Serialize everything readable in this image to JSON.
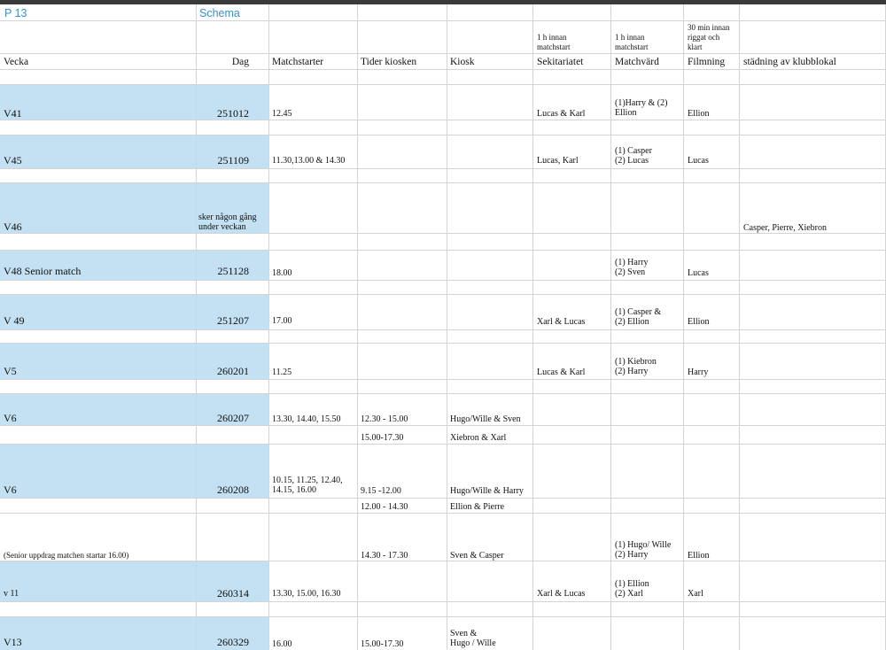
{
  "sheet": {
    "title_cells": {
      "a": "P 13",
      "b": "Schema"
    },
    "sub_headers": {
      "sekretariatet": [
        "1 h innan",
        "matchstart"
      ],
      "matchvard": [
        "1 h innan",
        "matchstart"
      ],
      "filmning": [
        "30 min innan",
        "riggat och",
        "klart"
      ]
    },
    "headers": {
      "vecka": "Vecka",
      "dag": "Dag",
      "matchstarter": "Matchstarter",
      "tider_kiosken": "Tider kiosken",
      "kiosk": "Kiosk",
      "sekretariatet": "Sekitariatet",
      "matchvard": "Matchvärd",
      "filmning": "Filmning",
      "stadning": "städning av klubblokal"
    },
    "rows": {
      "v41": {
        "vecka": "V41",
        "dag": "251012",
        "matchstarter": "12.45",
        "sekretariat": "Lucas & Karl",
        "matchvard": [
          "(1)Harry & (2)",
          "Ellion"
        ],
        "filmning": "Ellion"
      },
      "v45": {
        "vecka": "V45",
        "dag": "251109",
        "matchstarter": "11.30,13.00 & 14.30",
        "sekretariat": "Lucas, Karl",
        "matchvard": [
          "(1) Casper",
          "(2) Lucas"
        ],
        "filmning": "Lucas"
      },
      "v46": {
        "vecka": "V46",
        "dag": [
          "sker någon gång",
          "under veckan"
        ],
        "stadning": "Casper, Pierre, Xiebron"
      },
      "v48": {
        "vecka": "V48  Senior match",
        "dag": "251128",
        "matchstarter": "18.00",
        "matchvard": [
          "(1) Harry",
          "(2) Sven"
        ],
        "filmning": "Lucas"
      },
      "v49": {
        "vecka": "V 49",
        "dag": "251207",
        "matchstarter": "17.00",
        "sekretariat": "Xarl & Lucas",
        "matchvard": [
          "(1) Casper &",
          "(2) Ellion"
        ],
        "filmning": "Ellion"
      },
      "v5": {
        "vecka": "V5",
        "dag": "260201",
        "matchstarter": "11.25",
        "sekretariat": "Lucas & Karl",
        "matchvard": [
          "(1) Kiebron",
          "(2) Harry"
        ],
        "filmning": "Harry"
      },
      "v6a": {
        "vecka": "V6",
        "dag": "260207",
        "matchstarter": "13.30, 14.40, 15.50",
        "tider": "12.30 - 15.00",
        "kiosk": "Hugo/Wille & Sven",
        "tider2": "15.00-17.30",
        "kiosk2": "Xiebron &  Xarl"
      },
      "v6b": {
        "vecka": "V6",
        "dag": "260208",
        "matchstarter": [
          "10.15, 11.25, 12.40,",
          "14.15, 16.00"
        ],
        "tider": "9.15 -12.00",
        "kiosk": "Hugo/Wille & Harry",
        "tider2": "12.00 - 14.30",
        "kiosk2": "Ellion  & Pierre"
      },
      "senior": {
        "vecka": "(Senior uppdrag matchen startar 16.00)",
        "tider": "14.30 - 17.30",
        "kiosk": "Sven & Casper",
        "matchvard": [
          "(1) Hugo/ Wille",
          "(2) Harry"
        ],
        "filmning": "Ellion"
      },
      "v11": {
        "vecka": "v  11",
        "dag": "260314",
        "matchstarter": "13.30, 15.00, 16.30",
        "sekretariat": "Xarl & Lucas",
        "matchvard": [
          "(1) Ellion",
          "(2) Xarl"
        ],
        "filmning": "Xarl"
      },
      "v13": {
        "vecka": "V13",
        "dag": "260329",
        "matchstarter": "16.00",
        "tider": "15.00-17.30",
        "kiosk": [
          "Sven &",
          "Hugo / Wille"
        ]
      }
    }
  }
}
